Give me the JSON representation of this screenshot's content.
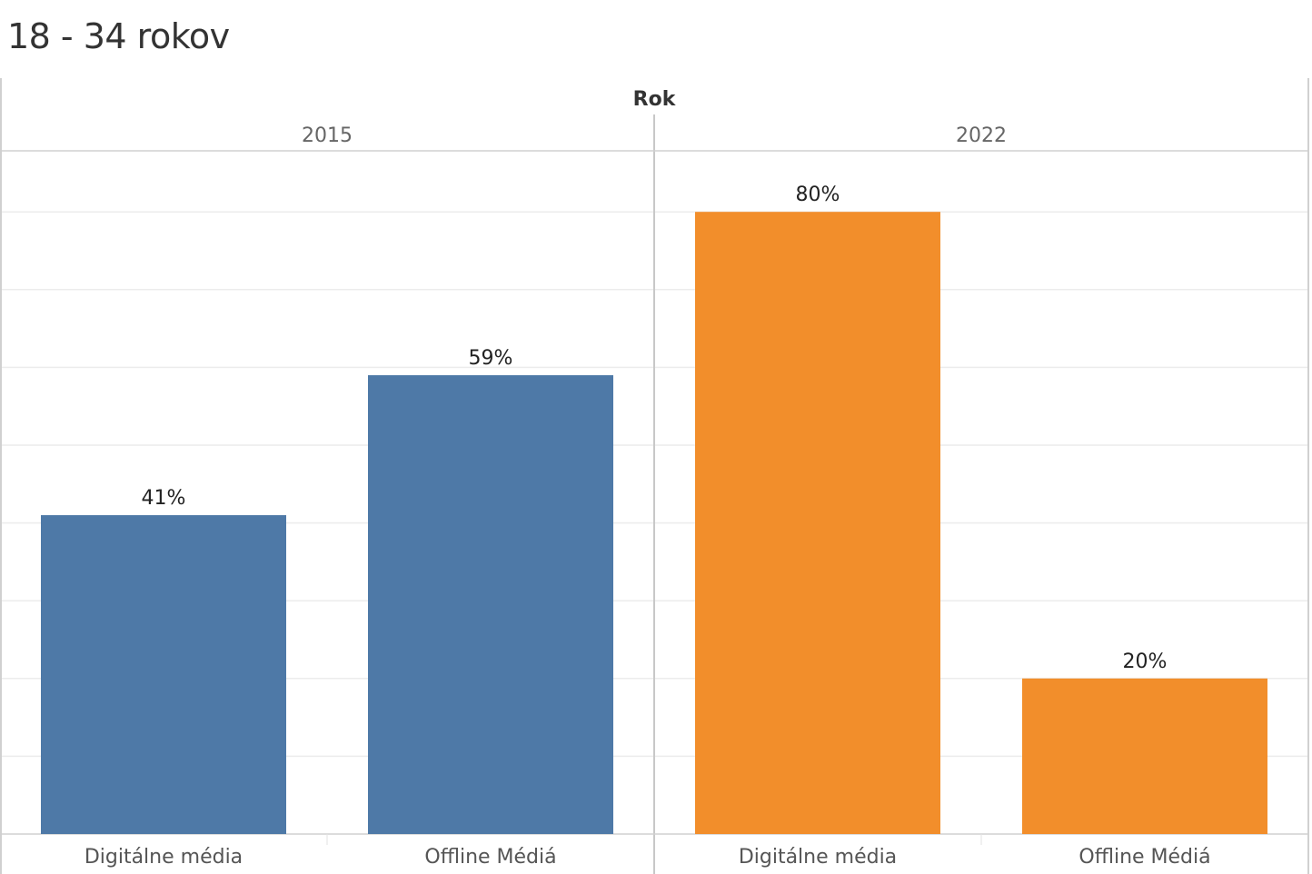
{
  "title": "18 - 34 rokov",
  "colors": {
    "2015": "#4e79a7",
    "2022": "#f28e2b"
  },
  "chart_data": {
    "type": "bar",
    "column_header": "Rok",
    "groups": [
      {
        "name": "2015",
        "categories": [
          "Digitálne média",
          "Offline Médiá"
        ],
        "values": [
          41,
          59
        ],
        "labels": [
          "41%",
          "59%"
        ]
      },
      {
        "name": "2022",
        "categories": [
          "Digitálne média",
          "Offline Médiá"
        ],
        "values": [
          80,
          20
        ],
        "labels": [
          "80%",
          "20%"
        ]
      }
    ],
    "ylim": [
      0,
      88
    ],
    "grid": true
  }
}
